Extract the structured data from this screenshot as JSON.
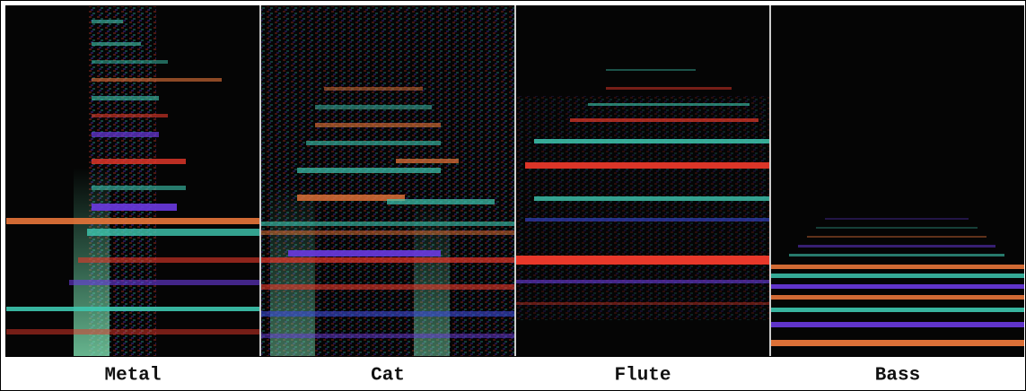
{
  "panels": [
    {
      "label": "Metal"
    },
    {
      "label": "Cat"
    },
    {
      "label": "Flute"
    },
    {
      "label": "Bass"
    }
  ]
}
